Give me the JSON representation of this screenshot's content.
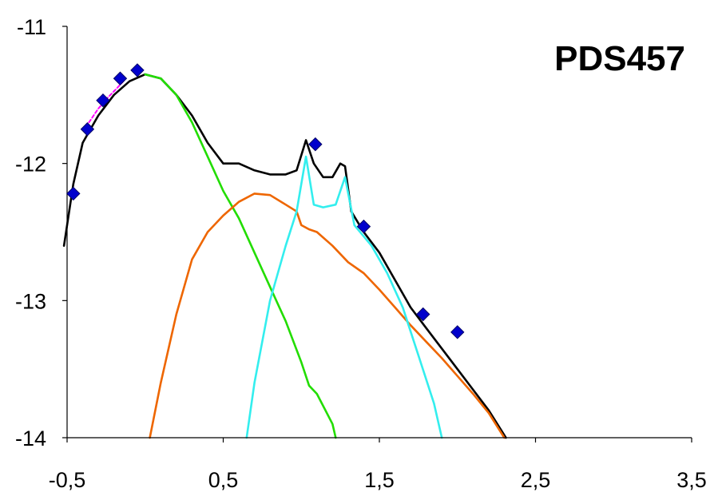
{
  "chart_data": {
    "type": "line",
    "title": "PDS457",
    "xlabel": "",
    "ylabel": "",
    "xlim": [
      -0.5,
      3.5
    ],
    "ylim": [
      -14,
      -11
    ],
    "xticks": [
      -0.5,
      0.5,
      1.5,
      2.5,
      3.5
    ],
    "xtick_labels": [
      "-0,5",
      "0,5",
      "1,5",
      "2,5",
      "3,5"
    ],
    "yticks": [
      -14,
      -13,
      -12,
      -11
    ],
    "ytick_labels": [
      "-14",
      "-13",
      "-12",
      "-11"
    ],
    "grid": false,
    "legend": "none",
    "series": [
      {
        "color": "#000000",
        "points": [
          [
            -0.52,
            -12.6
          ],
          [
            -0.46,
            -12.15
          ],
          [
            -0.4,
            -11.85
          ],
          [
            -0.3,
            -11.65
          ],
          [
            -0.2,
            -11.5
          ],
          [
            -0.1,
            -11.4
          ],
          [
            0.0,
            -11.35
          ],
          [
            0.1,
            -11.38
          ],
          [
            0.2,
            -11.5
          ],
          [
            0.3,
            -11.65
          ],
          [
            0.4,
            -11.85
          ],
          [
            0.5,
            -12.0
          ],
          [
            0.6,
            -12.0
          ],
          [
            0.7,
            -12.05
          ],
          [
            0.8,
            -12.08
          ],
          [
            0.9,
            -12.08
          ],
          [
            0.97,
            -12.05
          ],
          [
            1.03,
            -11.83
          ],
          [
            1.08,
            -12.0
          ],
          [
            1.14,
            -12.1
          ],
          [
            1.2,
            -12.1
          ],
          [
            1.25,
            -12.0
          ],
          [
            1.28,
            -12.02
          ],
          [
            1.32,
            -12.35
          ],
          [
            1.4,
            -12.5
          ],
          [
            1.5,
            -12.65
          ],
          [
            1.6,
            -12.85
          ],
          [
            1.7,
            -13.05
          ],
          [
            1.8,
            -13.2
          ],
          [
            1.9,
            -13.35
          ],
          [
            2.0,
            -13.5
          ],
          [
            2.1,
            -13.65
          ],
          [
            2.2,
            -13.8
          ],
          [
            2.31,
            -14.0
          ]
        ]
      },
      {
        "color": "#22dd00",
        "points": [
          [
            0.0,
            -11.35
          ],
          [
            0.1,
            -11.38
          ],
          [
            0.2,
            -11.5
          ],
          [
            0.3,
            -11.7
          ],
          [
            0.4,
            -11.95
          ],
          [
            0.5,
            -12.2
          ],
          [
            0.6,
            -12.4
          ],
          [
            0.7,
            -12.65
          ],
          [
            0.8,
            -12.9
          ],
          [
            0.9,
            -13.15
          ],
          [
            1.0,
            -13.45
          ],
          [
            1.05,
            -13.62
          ],
          [
            1.1,
            -13.68
          ],
          [
            1.2,
            -13.9
          ],
          [
            1.22,
            -14.0
          ]
        ]
      },
      {
        "color": "#ee6600",
        "points": [
          [
            0.03,
            -14.0
          ],
          [
            0.1,
            -13.6
          ],
          [
            0.2,
            -13.1
          ],
          [
            0.3,
            -12.7
          ],
          [
            0.4,
            -12.5
          ],
          [
            0.5,
            -12.38
          ],
          [
            0.6,
            -12.28
          ],
          [
            0.7,
            -12.22
          ],
          [
            0.8,
            -12.23
          ],
          [
            0.9,
            -12.3
          ],
          [
            0.97,
            -12.35
          ],
          [
            1.0,
            -12.45
          ],
          [
            1.05,
            -12.48
          ],
          [
            1.1,
            -12.5
          ],
          [
            1.2,
            -12.6
          ],
          [
            1.3,
            -12.72
          ],
          [
            1.4,
            -12.8
          ],
          [
            1.5,
            -12.92
          ],
          [
            1.6,
            -13.05
          ],
          [
            1.7,
            -13.18
          ],
          [
            1.8,
            -13.3
          ],
          [
            1.9,
            -13.42
          ],
          [
            2.0,
            -13.55
          ],
          [
            2.1,
            -13.68
          ],
          [
            2.2,
            -13.82
          ],
          [
            2.3,
            -14.0
          ]
        ]
      },
      {
        "color": "#33eeee",
        "points": [
          [
            0.65,
            -14.0
          ],
          [
            0.7,
            -13.6
          ],
          [
            0.8,
            -13.0
          ],
          [
            0.9,
            -12.6
          ],
          [
            0.97,
            -12.35
          ],
          [
            1.03,
            -11.95
          ],
          [
            1.08,
            -12.3
          ],
          [
            1.14,
            -12.32
          ],
          [
            1.22,
            -12.3
          ],
          [
            1.28,
            -12.1
          ],
          [
            1.34,
            -12.45
          ],
          [
            1.45,
            -12.6
          ],
          [
            1.55,
            -12.8
          ],
          [
            1.65,
            -13.05
          ],
          [
            1.75,
            -13.4
          ],
          [
            1.85,
            -13.75
          ],
          [
            1.9,
            -14.0
          ]
        ]
      },
      {
        "color": "#ff00ff",
        "points": [
          [
            -0.36,
            -11.7
          ],
          [
            -0.3,
            -11.6
          ],
          [
            -0.24,
            -11.52
          ],
          [
            -0.18,
            -11.45
          ],
          [
            -0.14,
            -11.4
          ]
        ]
      },
      {
        "color": "#0000cc",
        "marker": "diamond",
        "points": [
          [
            -0.46,
            -12.22
          ],
          [
            -0.37,
            -11.75
          ],
          [
            -0.27,
            -11.54
          ],
          [
            -0.16,
            -11.38
          ],
          [
            -0.05,
            -11.32
          ],
          [
            1.09,
            -11.86
          ],
          [
            1.4,
            -12.46
          ],
          [
            1.78,
            -13.1
          ],
          [
            2.0,
            -13.23
          ]
        ]
      }
    ]
  }
}
